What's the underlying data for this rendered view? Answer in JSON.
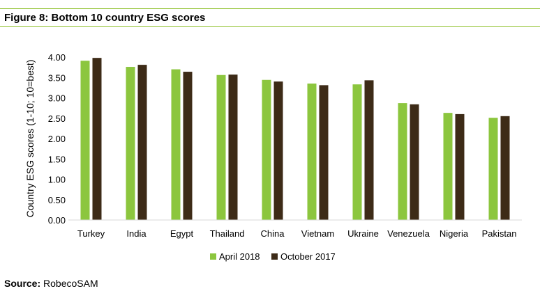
{
  "figure": {
    "title": "Figure 8: Bottom 10 country ESG scores",
    "source_label": "Source:",
    "source_value": "RobecoSAM"
  },
  "colors": {
    "rule": "#8cbf26",
    "april_2018": "#8cc63e",
    "october_2017": "#3d2b17"
  },
  "chart_data": {
    "type": "bar",
    "categories": [
      "Turkey",
      "India",
      "Egypt",
      "Thailand",
      "China",
      "Vietnam",
      "Ukraine",
      "Venezuela",
      "Nigeria",
      "Pakistan"
    ],
    "series": [
      {
        "name": "April 2018",
        "color": "#8cc63e",
        "values": [
          3.91,
          3.76,
          3.7,
          3.56,
          3.44,
          3.35,
          3.33,
          2.87,
          2.63,
          2.51
        ]
      },
      {
        "name": "October 2017",
        "color": "#3d2b17",
        "values": [
          3.98,
          3.81,
          3.64,
          3.57,
          3.4,
          3.31,
          3.43,
          2.84,
          2.6,
          2.55
        ]
      }
    ],
    "ylabel": "Country ESG scores (1-10; 10=best)",
    "xlabel": "",
    "ylim": [
      0,
      4
    ],
    "yticks": [
      "0.00",
      "0.50",
      "1.00",
      "1.50",
      "2.00",
      "2.50",
      "3.00",
      "3.50",
      "4.00"
    ],
    "grid": false,
    "legend_position": "bottom-center"
  }
}
